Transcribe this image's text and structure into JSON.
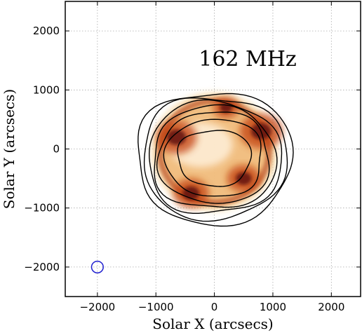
{
  "chart_data": {
    "type": "heatmap",
    "title": "",
    "annotation": "162 MHz",
    "xlabel": "Solar X (arcsecs)",
    "ylabel": "Solar Y (arcsecs)",
    "xlim": [
      -2550,
      2500
    ],
    "ylim": [
      -2500,
      2500
    ],
    "xticks": [
      -2000,
      -1000,
      0,
      1000,
      2000
    ],
    "yticks": [
      -2000,
      -1000,
      0,
      1000,
      2000
    ],
    "xtick_labels": [
      "−2000",
      "−1000",
      "0",
      "1000",
      "2000"
    ],
    "ytick_labels": [
      "−2000",
      "−1000",
      "0",
      "1000",
      "2000"
    ],
    "grid": true,
    "colormap": "white-yellow-orange-red-brown (gist_heat_r)",
    "colors": {
      "axis": "#000000",
      "grid": "#aaaaaa",
      "contour": "#000000",
      "beam": "#1f1fd0"
    },
    "contour_center": [
      0,
      -150
    ],
    "contour_levels": [
      {
        "rx": 1310,
        "ry": 1110
      },
      {
        "rx": 1220,
        "ry": 1025
      },
      {
        "rx": 1130,
        "ry": 940
      },
      {
        "rx": 1040,
        "ry": 860
      },
      {
        "rx": 940,
        "ry": 770
      },
      {
        "rx": 820,
        "ry": 650
      },
      {
        "rx": 620,
        "ry": 470
      }
    ],
    "emission": {
      "disk_center": [
        0,
        0
      ],
      "disk_radius": 1000,
      "bright_regions": [
        {
          "x": -650,
          "y": 200,
          "level": 0.85
        },
        {
          "x": 800,
          "y": 300,
          "level": 0.9
        },
        {
          "x": -400,
          "y": -750,
          "level": 0.75
        },
        {
          "x": 500,
          "y": -500,
          "level": 0.7
        },
        {
          "x": 200,
          "y": 700,
          "level": 0.55
        }
      ]
    },
    "beam": {
      "x": -2000,
      "y": -2000,
      "radius": 100
    }
  }
}
